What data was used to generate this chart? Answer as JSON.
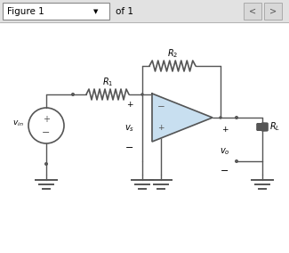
{
  "bg_color": "#f0f0f0",
  "circuit_bg": "#ffffff",
  "circuit_color": "#555555",
  "opamp_fill": "#c8dff0",
  "opamp_edge": "#555555",
  "toolbar_bg": "#e2e2e2",
  "toolbar_border": "#aaaaaa",
  "fig1_box_bg": "#ffffff",
  "nav_btn_bg": "#d8d8d8",
  "wire_lw": 1.0,
  "component_lw": 1.2,
  "dot_r": 0.055,
  "open_r": 0.065,
  "label_R1": "$R_1$",
  "label_R2": "$R_2$",
  "label_RL": "$R_L$",
  "label_vin": "$v_{in}$",
  "label_vs": "$v_s$",
  "label_vo": "$v_o$"
}
